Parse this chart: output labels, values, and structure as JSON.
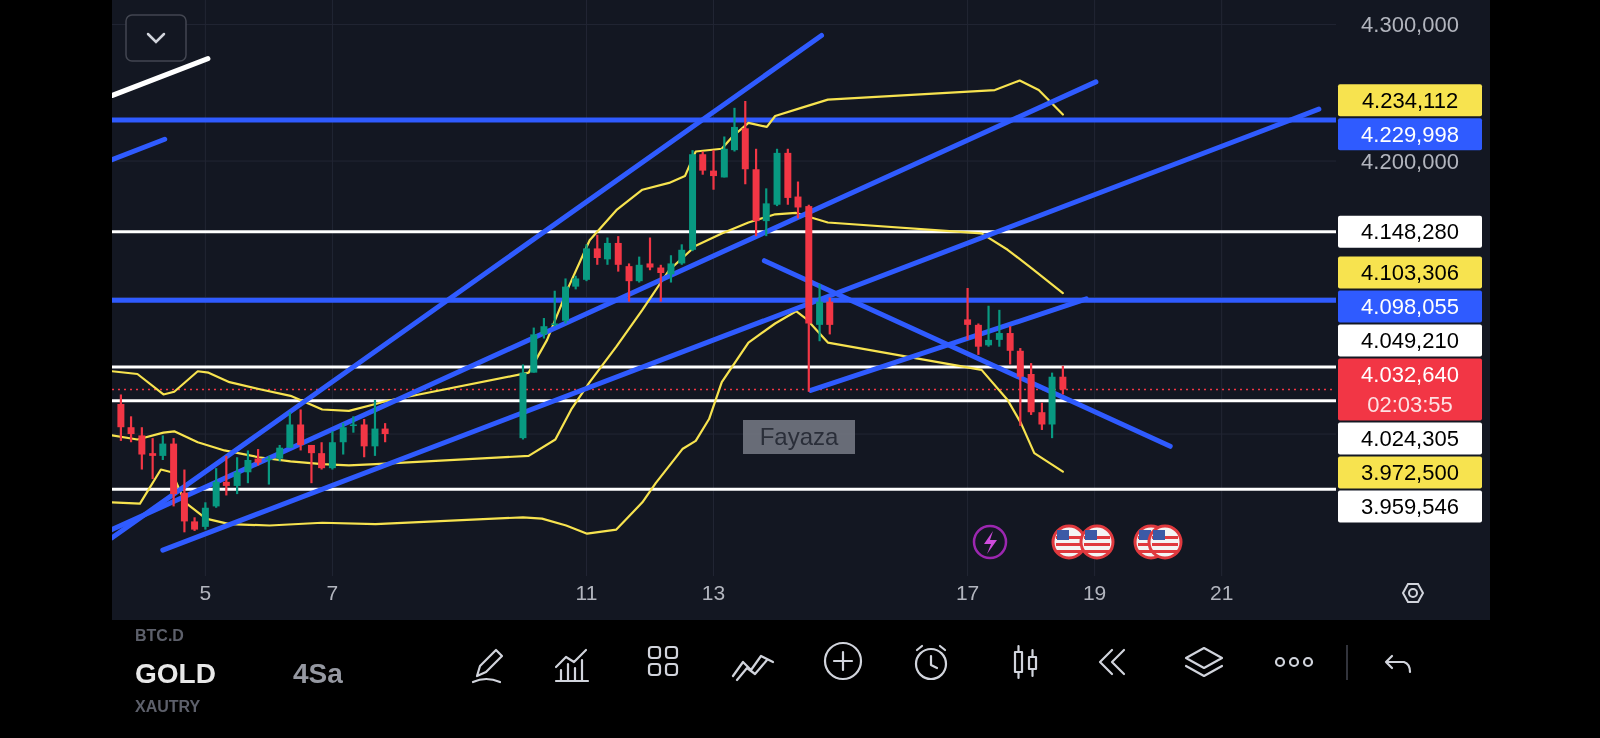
{
  "chart_data": {
    "type": "candlestick",
    "title": "GOLD",
    "subtitle": "4Sa",
    "x": [
      3.67,
      3.83,
      4.0,
      4.17,
      4.33,
      4.5,
      4.67,
      4.83,
      5.0,
      5.17,
      5.33,
      5.5,
      5.67,
      5.83,
      6.0,
      6.17,
      6.33,
      6.5,
      6.67,
      6.83,
      7.0,
      7.17,
      7.33,
      7.5,
      7.67,
      7.83,
      10.0,
      10.17,
      10.33,
      10.5,
      10.67,
      10.83,
      11.0,
      11.17,
      11.33,
      11.5,
      11.67,
      11.83,
      12.0,
      12.17,
      12.33,
      12.5,
      12.67,
      12.83,
      13.0,
      13.17,
      13.33,
      13.5,
      13.67,
      13.83,
      14.0,
      14.17,
      14.33,
      14.5,
      14.67,
      14.83,
      17.0,
      17.17,
      17.33,
      17.5,
      17.67,
      17.83,
      18.0,
      18.17,
      18.33,
      18.5
    ],
    "ohlc": [
      [
        4022,
        4029,
        3995,
        4005
      ],
      [
        4005,
        4013,
        3994,
        4000
      ],
      [
        3999,
        4005,
        3974,
        3985
      ],
      [
        3986,
        3997,
        3967,
        3984
      ],
      [
        3984,
        3999,
        3981,
        3993
      ],
      [
        3993,
        3997,
        3947,
        3956
      ],
      [
        3957,
        3974,
        3928,
        3936
      ],
      [
        3936,
        3939,
        3929,
        3930
      ],
      [
        3932,
        3950,
        3930,
        3946
      ],
      [
        3947,
        3975,
        3946,
        3965
      ],
      [
        3965,
        3984,
        3955,
        3962
      ],
      [
        3962,
        3983,
        3956,
        3972
      ],
      [
        3972,
        3988,
        3964,
        3981
      ],
      [
        3982,
        3989,
        3977,
        3979
      ],
      [
        3981,
        3984,
        3963,
        3982
      ],
      [
        3982,
        3992,
        3980,
        3990
      ],
      [
        3990,
        4016,
        3990,
        4007
      ],
      [
        4007,
        4018,
        3988,
        3992
      ],
      [
        3992,
        3992,
        3964,
        3986
      ],
      [
        3986,
        3994,
        3974,
        3975
      ],
      [
        3975,
        4002,
        3974,
        3994
      ],
      [
        3994,
        4008,
        3985,
        4005
      ],
      [
        4006,
        4013,
        4001,
        4007
      ],
      [
        4007,
        4011,
        3983,
        3991
      ],
      [
        3991,
        4025,
        3984,
        4004
      ],
      [
        4004,
        4008,
        3994,
        4000
      ],
      [
        3997,
        4051,
        3996,
        4045
      ],
      [
        4045,
        4078,
        4045,
        4073
      ],
      [
        4073,
        4085,
        4070,
        4079
      ],
      [
        4080,
        4105,
        4079,
        4081
      ],
      [
        4083,
        4114,
        4081,
        4108
      ],
      [
        4108,
        4116,
        4106,
        4114
      ],
      [
        4113,
        4139,
        4112,
        4136
      ],
      [
        4136,
        4146,
        4124,
        4129
      ],
      [
        4128,
        4144,
        4124,
        4140
      ],
      [
        4140,
        4145,
        4119,
        4124
      ],
      [
        4123,
        4125,
        4097,
        4112
      ],
      [
        4112,
        4130,
        4111,
        4124
      ],
      [
        4125,
        4144,
        4120,
        4122
      ],
      [
        4122,
        4124,
        4097,
        4118
      ],
      [
        4117,
        4131,
        4111,
        4125
      ],
      [
        4125,
        4139,
        4124,
        4135
      ],
      [
        4135,
        4208,
        4134,
        4205
      ],
      [
        4205,
        4207,
        4190,
        4193
      ],
      [
        4193,
        4208,
        4179,
        4189
      ],
      [
        4188,
        4218,
        4188,
        4209
      ],
      [
        4208,
        4239,
        4207,
        4225
      ],
      [
        4224,
        4244,
        4183,
        4194
      ],
      [
        4194,
        4209,
        4145,
        4156
      ],
      [
        4156,
        4180,
        4145,
        4169
      ],
      [
        4168,
        4209,
        4167,
        4206
      ],
      [
        4206,
        4209,
        4168,
        4173
      ],
      [
        4174,
        4185,
        4158,
        4166
      ],
      [
        4167,
        4168,
        4031,
        4081
      ],
      [
        4080,
        4110,
        4068,
        4097
      ],
      [
        4097,
        4100,
        4073,
        4080
      ],
      [
        4084,
        4107,
        4069,
        4080
      ],
      [
        4080,
        4081,
        4058,
        4064
      ],
      [
        4065,
        4094,
        4064,
        4069
      ],
      [
        4069,
        4091,
        4064,
        4074
      ],
      [
        4074,
        4079,
        4051,
        4061
      ],
      [
        4061,
        4063,
        4006,
        4042
      ],
      [
        4044,
        4052,
        4014,
        4016
      ],
      [
        4016,
        4023,
        4003,
        4007
      ],
      [
        4007,
        4045,
        3997,
        4042
      ],
      [
        4042,
        4050,
        4029,
        4032.64
      ]
    ],
    "colors": [
      "#f23645",
      "#f23645",
      "#f23645",
      "#f23645",
      "#089981",
      "#f23645",
      "#f23645",
      "#f23645",
      "#089981",
      "#089981",
      "#f23645",
      "#089981",
      "#089981",
      "#f23645",
      "#089981",
      "#089981",
      "#089981",
      "#f23645",
      "#f23645",
      "#f23645",
      "#089981",
      "#089981",
      "#089981",
      "#f23645",
      "#089981",
      "#f23645",
      "#089981",
      "#089981",
      "#089981",
      "#089981",
      "#089981",
      "#089981",
      "#089981",
      "#f23645",
      "#089981",
      "#f23645",
      "#f23645",
      "#089981",
      "#f23645",
      "#f23645",
      "#089981",
      "#089981",
      "#089981",
      "#f23645",
      "#f23645",
      "#089981",
      "#089981",
      "#f23645",
      "#f23645",
      "#089981",
      "#089981",
      "#f23645",
      "#f23645",
      "#f23645",
      "#089981",
      "#f23645",
      "#f23645",
      "#f23645",
      "#089981",
      "#089981",
      "#f23645",
      "#f23645",
      "#f23645",
      "#f23645",
      "#089981",
      "#f23645"
    ],
    "series": [
      {
        "type": "line",
        "color": "#f7e34f",
        "x": [
          3.53,
          3.93,
          4.34,
          4.51,
          4.88,
          5.05,
          5.38,
          5.84,
          6.34,
          6.84,
          7.26,
          7.68,
          7.83,
          10.09,
          10.38,
          10.72,
          11.05,
          11.47,
          11.88,
          12.3,
          12.55,
          12.72,
          13.13,
          13.3,
          13.55,
          13.84,
          13.97,
          14.38,
          14.8,
          17.43,
          17.82,
          18.12,
          18.5
        ],
        "values": [
          4046,
          4044,
          4029,
          4031,
          4046,
          4045,
          4038,
          4033,
          4028,
          4018,
          4017,
          4022,
          4024,
          4045,
          4069,
          4108,
          4142,
          4164,
          4179,
          4184,
          4189,
          4207,
          4209,
          4218,
          4228,
          4225,
          4233,
          4239,
          4245,
          4252,
          4259,
          4252,
          4234.112
        ]
      },
      {
        "type": "line",
        "color": "#f7e34f",
        "x": [
          3.53,
          3.93,
          4.34,
          4.51,
          4.88,
          5.3,
          5.84,
          6.34,
          6.84,
          7.26,
          7.68,
          10.09,
          10.51,
          10.76,
          11.05,
          11.47,
          11.88,
          12.3,
          12.72,
          13.13,
          13.55,
          13.97,
          14.3,
          14.8,
          17.22,
          17.63,
          18.05,
          18.5
        ],
        "values": [
          3999,
          3996,
          4001,
          4002,
          3994,
          3988,
          3983,
          3980,
          3978,
          3977,
          3978,
          3984,
          3996,
          4018,
          4038,
          4064,
          4091,
          4120,
          4138,
          4147,
          4155,
          4161,
          4162,
          4155,
          4147,
          4135,
          4120,
          4103.306
        ]
      },
      {
        "type": "line",
        "color": "#f7e34f",
        "x": [
          3.53,
          3.97,
          4.3,
          4.47,
          4.68,
          5.01,
          5.38,
          6.01,
          6.84,
          7.68,
          10.0,
          10.3,
          10.68,
          11.01,
          11.47,
          11.88,
          12.09,
          12.51,
          12.72,
          12.93,
          13.13,
          13.55,
          13.97,
          14.3,
          14.47,
          14.8,
          17.22,
          17.63,
          17.84,
          18.05,
          18.5
        ],
        "values": [
          3950,
          3949,
          3974,
          3972,
          3950,
          3938,
          3934,
          3933,
          3935,
          3934,
          3939,
          3938,
          3933,
          3927,
          3930,
          3950,
          3964,
          3989,
          3995,
          4011,
          4038,
          4067,
          4081,
          4090,
          4084,
          4067,
          4047,
          4025,
          4008,
          3986,
          3972.5
        ]
      },
      {
        "type": "line",
        "color": "#2f5bff",
        "x": [
          3.53,
          14.7
        ],
        "values": [
          3924,
          4292
        ]
      },
      {
        "type": "line",
        "color": "#2f5bff",
        "x": [
          4.33,
          22.53
        ],
        "values": [
          3915,
          4238
        ]
      },
      {
        "type": "line",
        "color": "#2f5bff",
        "x": [
          3.53,
          19.02
        ],
        "values": [
          3930,
          4258
        ]
      },
      {
        "type": "line",
        "color": "#2f5bff",
        "x": [
          3.53,
          4.36
        ],
        "values": [
          4201,
          4216
        ]
      },
      {
        "type": "line",
        "color": "#2f5bff",
        "x": [
          13.8,
          20.19
        ],
        "values": [
          4127,
          3991
        ]
      },
      {
        "type": "line",
        "color": "#2f5bff",
        "x": [
          14.53,
          18.87
        ],
        "values": [
          4032,
          4099
        ]
      },
      {
        "type": "line",
        "color": "#ffffff",
        "x": [
          3.53,
          5.04
        ],
        "values": [
          4248,
          4275
        ]
      }
    ],
    "xlim": [
      3.53,
      22.8
    ],
    "ylim": [
      3896,
      4318
    ],
    "xticks": [
      5,
      7,
      11,
      13,
      17,
      19,
      21
    ],
    "yticks": [
      {
        "value": 4300,
        "label": "4.300,000"
      },
      {
        "value": 4200,
        "label": "4.200,000"
      },
      {
        "value": 4100,
        "label": null
      },
      {
        "value": 4000,
        "label": null
      }
    ],
    "grid": true,
    "ref_lines": [
      {
        "axis": "y",
        "value": 4229.998,
        "label": "4.229,998",
        "color": "#2f5bff"
      },
      {
        "axis": "y",
        "value": 4148.28,
        "label": "4.148,280",
        "color": "#ffffff"
      },
      {
        "axis": "y",
        "value": 4098.055,
        "label": "4.098,055",
        "color": "#2f5bff"
      },
      {
        "axis": "y",
        "value": 4049.21,
        "label": "4.049,210",
        "color": "#ffffff"
      },
      {
        "axis": "y",
        "value": 4032.64,
        "label": "4.032,640",
        "color": "#f23645",
        "line_style": "dotted"
      },
      {
        "axis": "y",
        "value": 4024.305,
        "label": "4.024,305",
        "color": "#ffffff"
      },
      {
        "axis": "y",
        "value": 3959.546,
        "label": "3.959,546",
        "color": "#ffffff"
      }
    ],
    "annotations": [
      "Fayaza",
      "02:03:55",
      "BTC.D",
      "XAUTRY",
      "4.234,112",
      "4.103,306",
      "3.972,500"
    ]
  }
}
